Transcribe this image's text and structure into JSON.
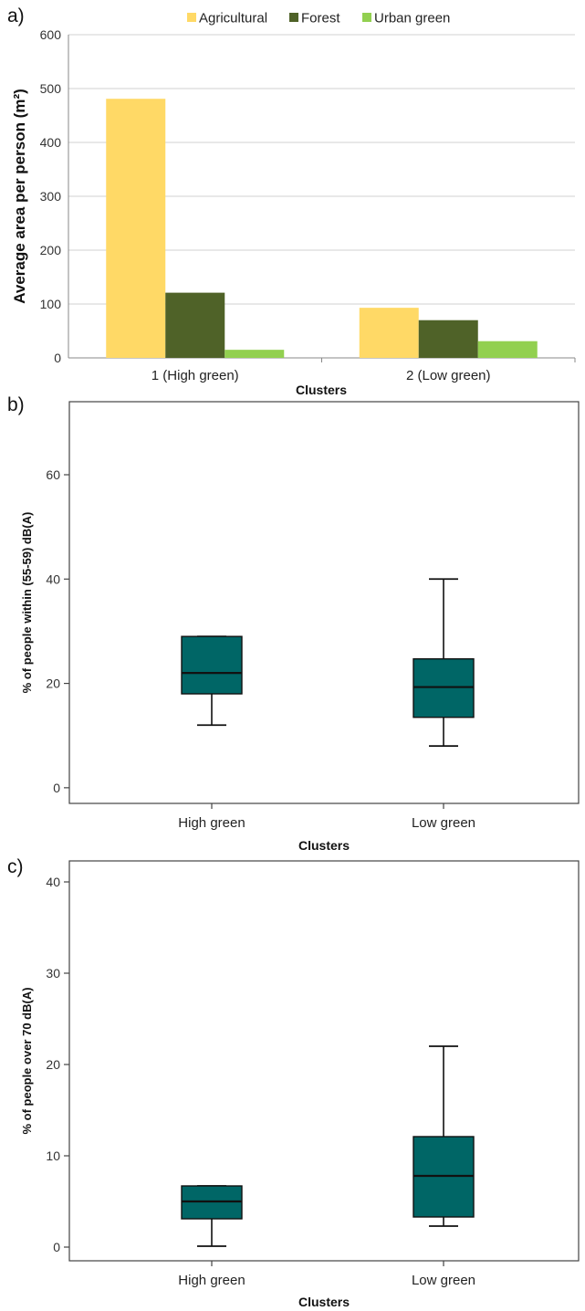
{
  "chart_data": [
    {
      "panel_label": "a)",
      "type": "bar",
      "categories": [
        "1 (High green)",
        "2 (Low green)"
      ],
      "series": [
        {
          "name": "Agricultural",
          "values": [
            481,
            93
          ],
          "color": "#ffd966"
        },
        {
          "name": "Forest",
          "values": [
            121,
            70
          ],
          "color": "#4f6228"
        },
        {
          "name": "Urban green",
          "values": [
            15,
            31
          ],
          "color": "#92d050"
        }
      ],
      "title": "",
      "xlabel": "Clusters",
      "ylabel": "Average  area  per person  (m²)",
      "ylim": [
        0,
        600
      ],
      "yticks": [
        0,
        100,
        200,
        300,
        400,
        500,
        600
      ],
      "grid": true,
      "legend": "top"
    },
    {
      "panel_label": "b)",
      "type": "box",
      "categories": [
        "High green",
        "Low green"
      ],
      "boxes": [
        {
          "name": "High green",
          "min": 12,
          "q1": 18,
          "median": 22,
          "q3": 29,
          "max": 29
        },
        {
          "name": "Low green",
          "min": 8,
          "q1": 13.5,
          "median": 19.3,
          "q3": 24.7,
          "max": 40
        }
      ],
      "color": "#006666",
      "xlabel": "Clusters",
      "ylabel": "% of people within (55-59) dB(A)",
      "ylim": [
        -3,
        74
      ],
      "yticks": [
        0,
        20,
        40,
        60
      ],
      "grid": false
    },
    {
      "panel_label": "c)",
      "type": "box",
      "categories": [
        "High green",
        "Low green"
      ],
      "boxes": [
        {
          "name": "High green",
          "min": 0.1,
          "q1": 3.1,
          "median": 5,
          "q3": 6.7,
          "max": 6.7
        },
        {
          "name": "Low green",
          "min": 2.3,
          "q1": 3.3,
          "median": 7.8,
          "q3": 12.1,
          "max": 22
        }
      ],
      "color": "#006666",
      "xlabel": "Clusters",
      "ylabel": "% of people over 70 dB(A)",
      "ylim": [
        -1.5,
        42.3
      ],
      "yticks": [
        0,
        10,
        20,
        30,
        40
      ],
      "grid": false
    }
  ]
}
